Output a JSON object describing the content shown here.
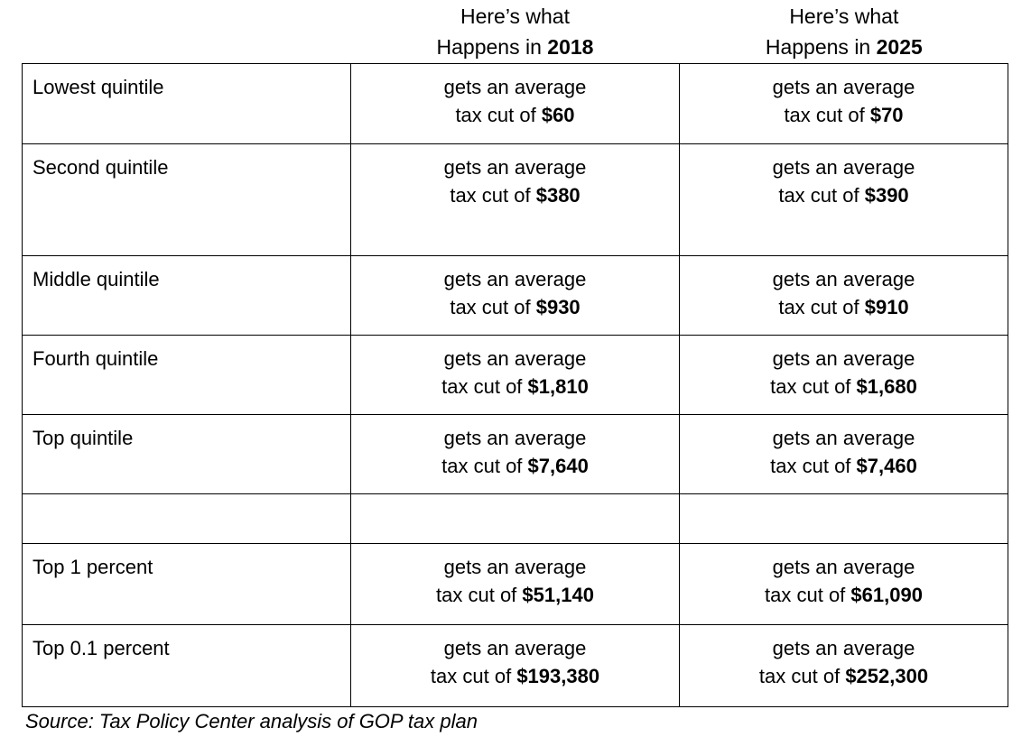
{
  "header": {
    "col_2018": {
      "line1": "Here’s what",
      "line2_prefix": "Happens in ",
      "year": "2018"
    },
    "col_2025": {
      "line1": "Here’s what",
      "line2_prefix": "Happens in ",
      "year": "2025"
    }
  },
  "cell": {
    "line1": "gets an average",
    "line2_prefix": "tax cut of "
  },
  "rows": [
    {
      "label": "Lowest quintile",
      "cut_2018": "$60",
      "cut_2025": "$70"
    },
    {
      "label": "Second quintile",
      "cut_2018": "$380",
      "cut_2025": "$390"
    },
    {
      "label": "Middle quintile",
      "cut_2018": "$930",
      "cut_2025": "$910"
    },
    {
      "label": "Fourth quintile",
      "cut_2018": "$1,810",
      "cut_2025": "$1,680"
    },
    {
      "label": "Top quintile",
      "cut_2018": "$7,640",
      "cut_2025": "$7,460"
    },
    {
      "label": "Top 1 percent",
      "cut_2018": "$51,140",
      "cut_2025": "$61,090"
    },
    {
      "label": "Top 0.1 percent",
      "cut_2018": "$193,380",
      "cut_2025": "$252,300"
    }
  ],
  "source": "Source: Tax Policy Center analysis of GOP tax plan",
  "colors": {
    "border": "#000000",
    "text": "#000000",
    "background": "#ffffff"
  },
  "chart_data": {
    "type": "table",
    "title": "",
    "categories": [
      "Lowest quintile",
      "Second quintile",
      "Middle quintile",
      "Fourth quintile",
      "Top quintile",
      "Top 1 percent",
      "Top 0.1 percent"
    ],
    "series": [
      {
        "name": "Average tax cut in 2018",
        "values": [
          60,
          380,
          930,
          1810,
          7640,
          51140,
          193380
        ]
      },
      {
        "name": "Average tax cut in 2025",
        "values": [
          70,
          390,
          910,
          1680,
          7460,
          61090,
          252300
        ]
      }
    ],
    "value_unit": "USD",
    "source": "Source: Tax Policy Center analysis of GOP tax plan",
    "layout": {
      "grid": true,
      "empty_spacer_row_after": "Top quintile"
    }
  }
}
